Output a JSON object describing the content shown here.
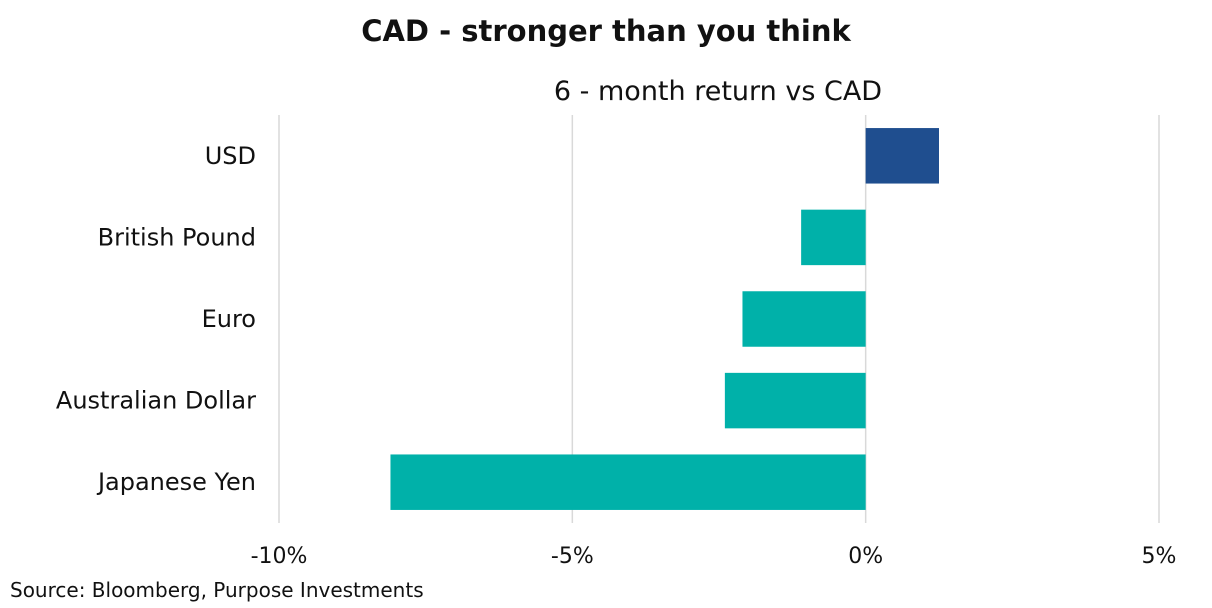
{
  "chart_data": {
    "type": "bar",
    "orientation": "horizontal",
    "title": "CAD - stronger than you think",
    "subtitle": "6 - month return vs CAD",
    "categories": [
      "USD",
      "British Pound",
      "Euro",
      "Australian Dollar",
      "Japanese Yen"
    ],
    "values": [
      1.25,
      -1.1,
      -2.1,
      -2.4,
      -8.1
    ],
    "bar_colors": [
      "#1F4E8F",
      "#00B1A9",
      "#00B1A9",
      "#00B1A9",
      "#00B1A9"
    ],
    "xlim": [
      -10,
      5
    ],
    "xticks": [
      -10,
      -5,
      0,
      5
    ],
    "xtick_labels": [
      "-10%",
      "-5%",
      "0%",
      "5%"
    ],
    "grid": true,
    "legend": "none",
    "source": "Source: Bloomberg, Purpose Investments"
  }
}
